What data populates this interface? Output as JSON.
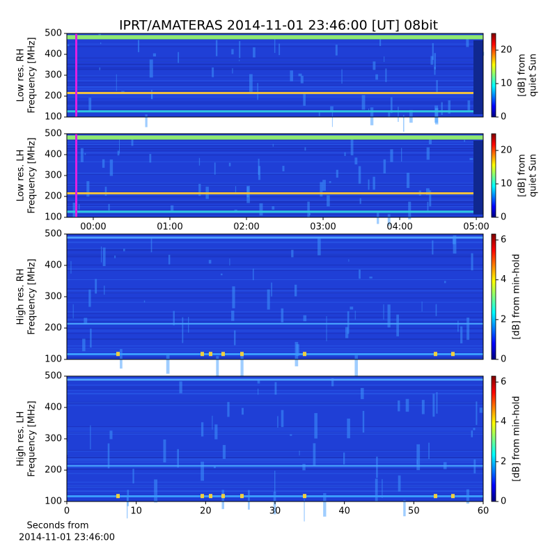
{
  "chart_data": [
    {
      "type": "spectrogram",
      "title": "IPRT/AMATERAS 2014-11-01 23:46:00 [UT]   08bit",
      "ylabel": [
        "Low res. RH",
        "Frequency [MHz]"
      ],
      "ylim": [
        100,
        500
      ],
      "yticks": [
        100,
        200,
        300,
        400,
        500
      ],
      "xlim": [
        -0.345,
        5.09
      ],
      "colorbar": {
        "label": [
          "[dB] from",
          "quiet Sun"
        ],
        "clim": [
          0,
          25
        ],
        "ticks": [
          0,
          10,
          20
        ]
      }
    },
    {
      "type": "spectrogram",
      "ylabel": [
        "Low res. LH",
        "Frequency [MHz]"
      ],
      "ylim": [
        100,
        500
      ],
      "yticks": [
        100,
        200,
        300,
        400,
        500
      ],
      "xlim": [
        -0.345,
        5.09
      ],
      "xticks": [
        {
          "value": 0,
          "label": "00:00"
        },
        {
          "value": 1,
          "label": "01:00"
        },
        {
          "value": 2,
          "label": "02:00"
        },
        {
          "value": 3,
          "label": "03:00"
        },
        {
          "value": 4,
          "label": "04:00"
        },
        {
          "value": 5,
          "label": "05:00"
        }
      ],
      "colorbar": {
        "label": [
          "[dB] from",
          "quiet Sun"
        ],
        "clim": [
          0,
          25
        ],
        "ticks": [
          0,
          10,
          20
        ]
      }
    },
    {
      "type": "spectrogram",
      "ylabel": [
        "High res. RH",
        "Frequency [MHz]"
      ],
      "ylim": [
        100,
        500
      ],
      "yticks": [
        100,
        200,
        300,
        400,
        500
      ],
      "xlim": [
        0,
        60
      ],
      "colorbar": {
        "label": [
          "[dB] from min-hold"
        ],
        "clim": [
          0,
          6.3
        ],
        "ticks": [
          0,
          2,
          4,
          6
        ]
      }
    },
    {
      "type": "spectrogram",
      "ylabel": [
        "High res. LH",
        "Frequency [MHz]"
      ],
      "ylim": [
        100,
        500
      ],
      "yticks": [
        100,
        200,
        300,
        400,
        500
      ],
      "xlim": [
        0,
        60
      ],
      "xticks": [
        0,
        10,
        20,
        30,
        40,
        50,
        60
      ],
      "xlabel": [
        "Seconds from",
        "2014-11-01 23:46:00"
      ],
      "colorbar": {
        "label": [
          "[dB] from min-hold"
        ],
        "clim": [
          0,
          6.3
        ],
        "ticks": [
          0,
          2,
          4,
          6
        ]
      }
    }
  ]
}
